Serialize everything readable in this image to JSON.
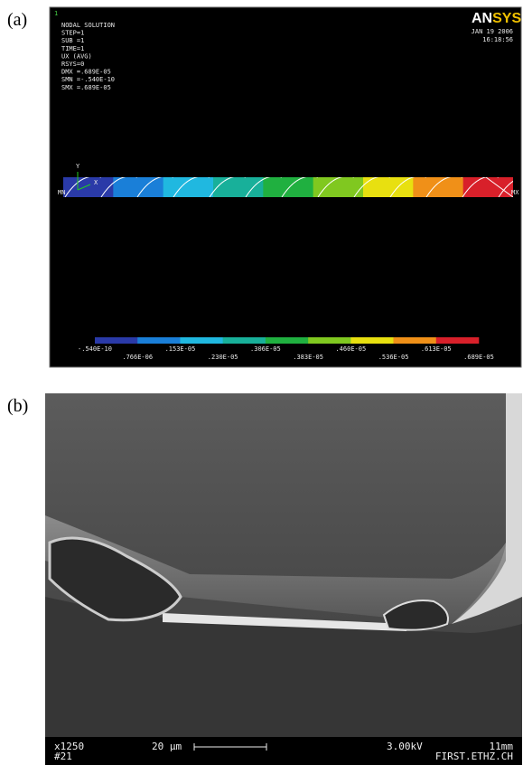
{
  "panel_a": {
    "label": "(a)",
    "index": "1",
    "logo_an": "AN",
    "logo_sys": "SYS",
    "date": "JAN 19 2006",
    "time": "16:18:56",
    "info": [
      "NODAL SOLUTION",
      "STEP=1",
      "SUB =1",
      "TIME=1",
      "UX       (AVG)",
      "RSYS=0",
      "DMX =.689E-05",
      "SMN =-.540E-10",
      "SMX =.689E-05"
    ],
    "axis_y": "Y",
    "axis_x": "X",
    "min_marker": "MN",
    "max_marker": "MX",
    "colorbar": {
      "colors": [
        "#2a3aa8",
        "#1a7fd8",
        "#20b8e0",
        "#18b09a",
        "#20b040",
        "#80c820",
        "#e8e010",
        "#f09018",
        "#d8202a"
      ],
      "labels": [
        "-.540E-10",
        ".766E-06",
        ".153E-05",
        ".230E-05",
        ".306E-05",
        ".383E-05",
        ".460E-05",
        ".536E-05",
        ".613E-05",
        ".689E-05"
      ]
    }
  },
  "panel_b": {
    "label": "(b)",
    "magnification": "x1250",
    "number": "#21",
    "scale": "20 µm",
    "voltage": "3.00kV",
    "distance": "11mm",
    "source": "FIRST.ETHZ.CH"
  }
}
